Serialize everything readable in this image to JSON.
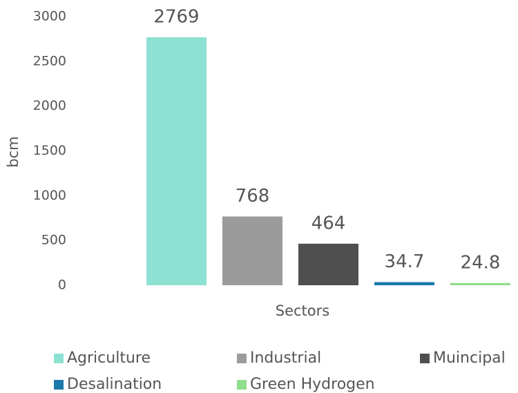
{
  "chart_data": {
    "type": "bar",
    "ylabel": "bcm",
    "xlabel": "Sectors",
    "ylim": [
      0,
      3000
    ],
    "yticks": [
      0,
      500,
      1000,
      1500,
      2000,
      2500,
      3000
    ],
    "series": [
      {
        "name": "Agriculture",
        "color": "#8de1d3",
        "values": [
          2769
        ]
      },
      {
        "name": "Industrial",
        "color": "#9b9b9b",
        "values": [
          768
        ]
      },
      {
        "name": "Muincipal",
        "color": "#4f4f4f",
        "values": [
          464
        ]
      },
      {
        "name": "Desalination",
        "color": "#1b7aab",
        "values": [
          34.7
        ]
      },
      {
        "name": "Green Hydrogen",
        "color": "#90dd8c",
        "values": [
          24.8
        ]
      }
    ],
    "legend": "bottom"
  }
}
